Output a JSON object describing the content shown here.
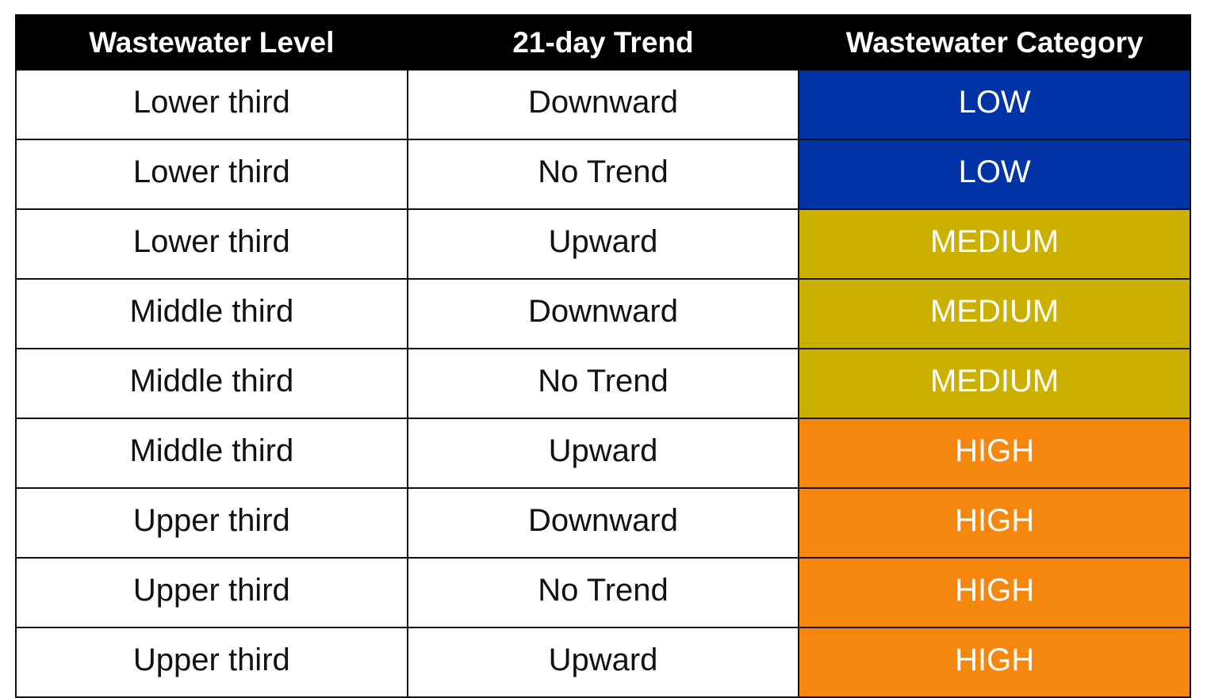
{
  "table": {
    "header": [
      "Wastewater Level",
      "21-day Trend",
      "Wastewater Category"
    ],
    "rows": [
      [
        "Lower third",
        "Downward",
        "LOW"
      ],
      [
        "Lower third",
        "No Trend",
        "LOW"
      ],
      [
        "Lower third",
        "Upward",
        "MEDIUM"
      ],
      [
        "Middle third",
        "Downward",
        "MEDIUM"
      ],
      [
        "Middle third",
        "No Trend",
        "MEDIUM"
      ],
      [
        "Middle third",
        "Upward",
        "HIGH"
      ],
      [
        "Upper third",
        "Downward",
        "HIGH"
      ],
      [
        "Upper third",
        "No Trend",
        "HIGH"
      ],
      [
        "Upper third",
        "Upward",
        "HIGH"
      ]
    ],
    "category_fill": [
      "#0033a6",
      "#0033a6",
      "#ccb000",
      "#ccb000",
      "#ccb000",
      "#f5870f",
      "#f5870f",
      "#f5870f",
      "#f5870f"
    ]
  }
}
